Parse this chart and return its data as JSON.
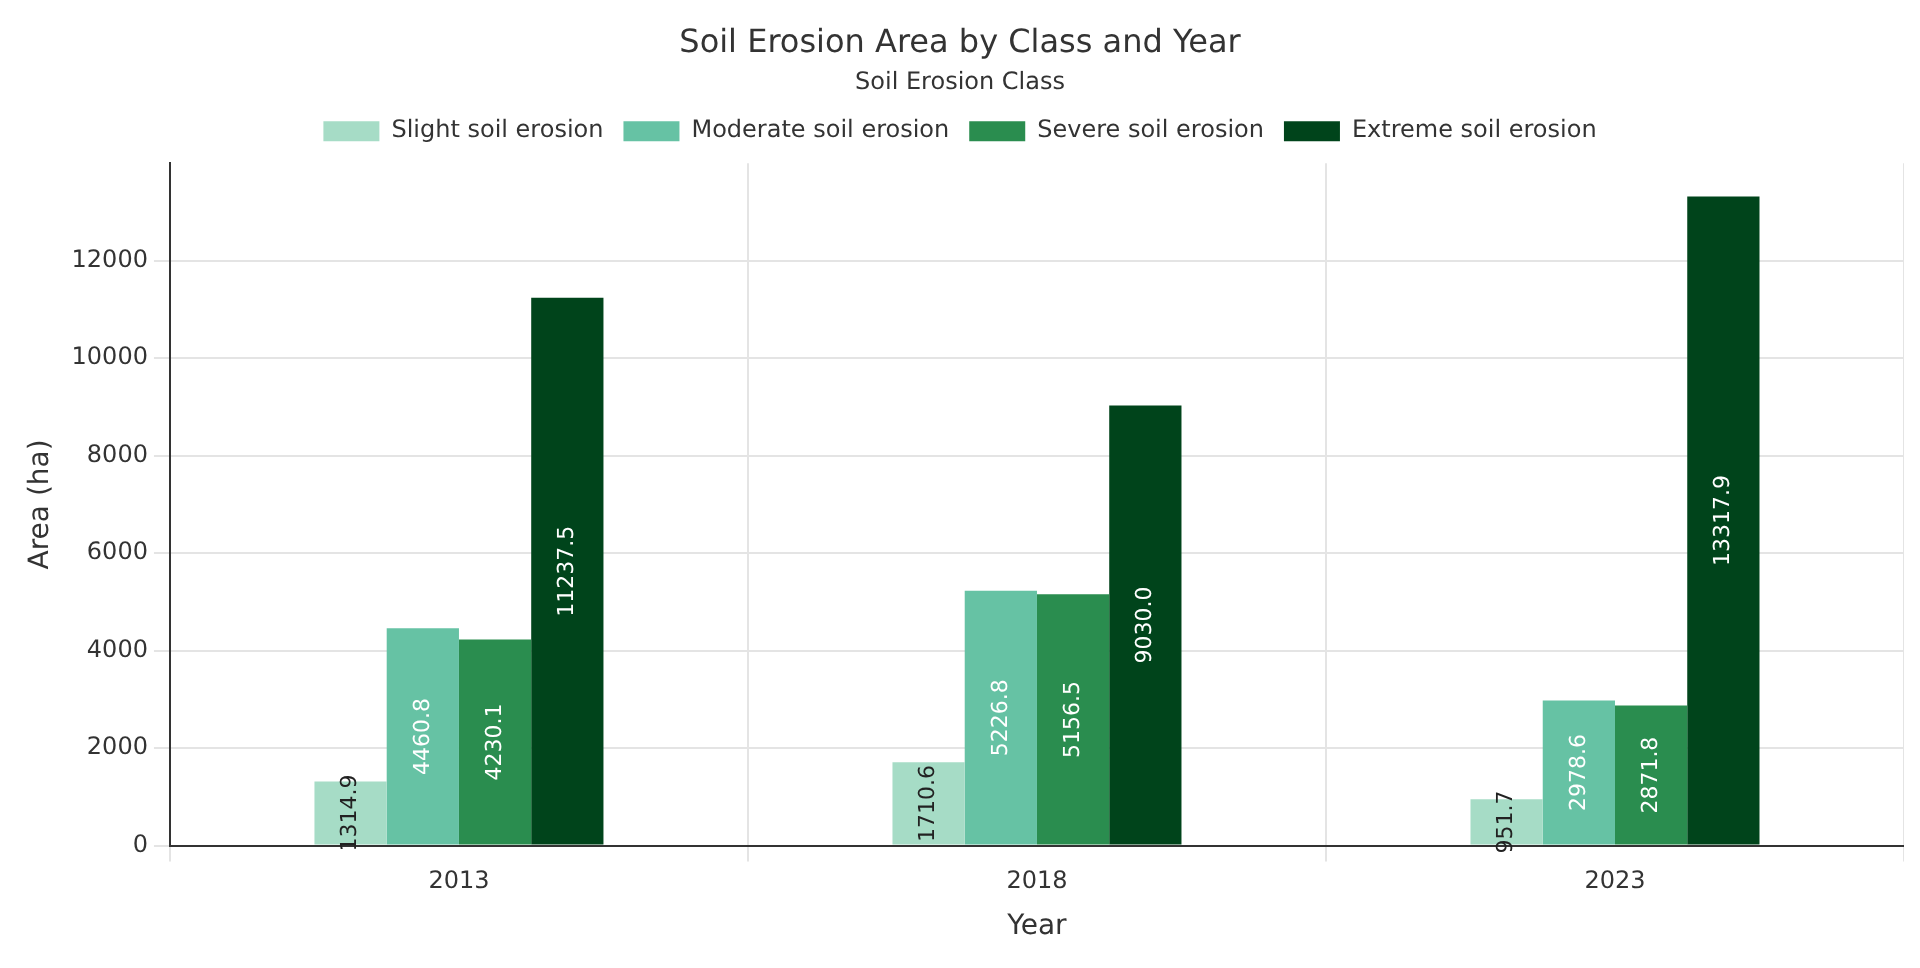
{
  "chart_data": {
    "type": "bar",
    "title": "Soil Erosion Area by Class and Year",
    "xlabel": "Year",
    "ylabel": "Area (ha)",
    "legend_title": "Soil Erosion Class",
    "categories": [
      "2013",
      "2018",
      "2023"
    ],
    "series": [
      {
        "name": "Slight soil erosion",
        "color": "#a6dcc6",
        "values": [
          1314.9,
          1710.6,
          951.7
        ],
        "value_labels": [
          "1314.9",
          "1710.6",
          "951.7"
        ]
      },
      {
        "name": "Moderate soil erosion",
        "color": "#66c2a4",
        "values": [
          4460.8,
          5226.8,
          2978.6
        ],
        "value_labels": [
          "4460.8",
          "5226.8",
          "2978.6"
        ]
      },
      {
        "name": "Severe soil erosion",
        "color": "#2a8d4f",
        "values": [
          4230.1,
          5156.5,
          2871.8
        ],
        "value_labels": [
          "4230.1",
          "5156.5",
          "2871.8"
        ]
      },
      {
        "name": "Extreme soil erosion",
        "color": "#00441b",
        "values": [
          11237.5,
          9030.0,
          13317.9
        ],
        "value_labels": [
          "11237.5",
          "9030.0",
          "13317.9"
        ]
      }
    ],
    "ylim": [
      0,
      14000
    ],
    "yticks": [
      0,
      2000,
      4000,
      6000,
      8000,
      10000,
      12000
    ],
    "grid": true,
    "legend": "top"
  }
}
